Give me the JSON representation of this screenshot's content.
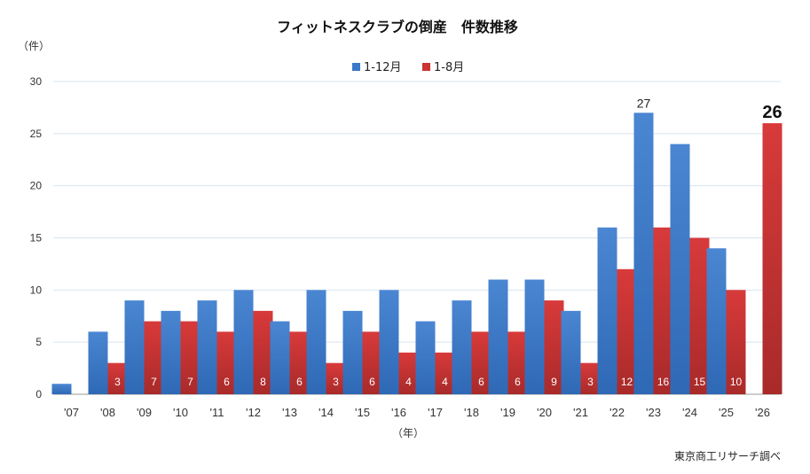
{
  "chart_data": {
    "type": "bar",
    "title": "フィットネスクラブの倒産　件数推移",
    "ylabel": "（件）",
    "xlabel": "（年）",
    "source": "東京商工リサーチ調べ",
    "ylim": [
      0,
      30
    ],
    "yticks": [
      0,
      5,
      10,
      15,
      20,
      25,
      30
    ],
    "grid": true,
    "legend_position": "top-center",
    "categories": [
      "'07",
      "'08",
      "'09",
      "'10",
      "'11",
      "'12",
      "'13",
      "'14",
      "'15",
      "'16",
      "'17",
      "'18",
      "'19",
      "'20",
      "'21",
      "'22",
      "'23",
      "'24",
      "'25",
      "'26"
    ],
    "series": [
      {
        "name": "1-12月",
        "color": "#3a78c9",
        "values": [
          1,
          6,
          9,
          8,
          9,
          10,
          7,
          10,
          8,
          10,
          7,
          9,
          11,
          11,
          8,
          16,
          27,
          24,
          14,
          null
        ],
        "labels": [
          null,
          null,
          null,
          null,
          null,
          null,
          null,
          null,
          null,
          null,
          null,
          null,
          null,
          null,
          null,
          null,
          "27",
          null,
          null,
          null
        ]
      },
      {
        "name": "1-8月",
        "color": "#cc3333",
        "values": [
          null,
          3,
          7,
          7,
          6,
          8,
          6,
          3,
          6,
          4,
          4,
          6,
          6,
          9,
          3,
          12,
          16,
          15,
          10,
          26
        ],
        "labels": [
          null,
          "3",
          "7",
          "7",
          "6",
          "8",
          "6",
          "3",
          "6",
          "4",
          "4",
          "6",
          "6",
          "9",
          "3",
          "12",
          "16",
          "15",
          "10",
          "26"
        ]
      }
    ]
  }
}
